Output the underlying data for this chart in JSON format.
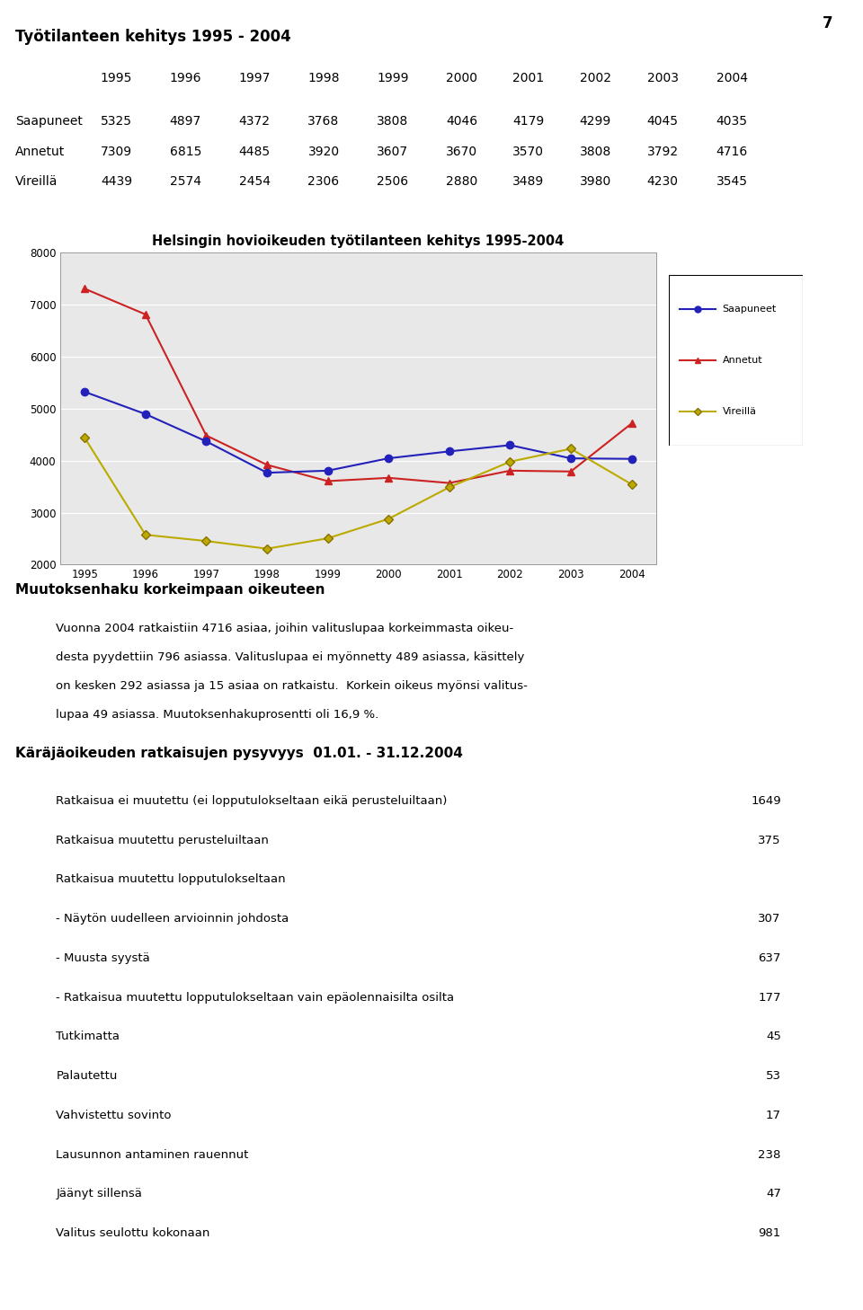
{
  "page_number": "7",
  "main_title": "Työtilanteen kehitys 1995 - 2004",
  "years": [
    1995,
    1996,
    1997,
    1998,
    1999,
    2000,
    2001,
    2002,
    2003,
    2004
  ],
  "saapuneet": [
    5325,
    4897,
    4372,
    3768,
    3808,
    4046,
    4179,
    4299,
    4045,
    4035
  ],
  "annetut": [
    7309,
    6815,
    4485,
    3920,
    3607,
    3670,
    3570,
    3808,
    3792,
    4716
  ],
  "vireilla": [
    4439,
    2574,
    2454,
    2306,
    2506,
    2880,
    3489,
    3980,
    4230,
    3545
  ],
  "chart_title": "Helsingin hovioikeuden työtilanteen kehitys 1995-2004",
  "ylim": [
    2000,
    8000
  ],
  "yticks": [
    2000,
    3000,
    4000,
    5000,
    6000,
    7000,
    8000
  ],
  "saapuneet_color": "#2222bb",
  "annetut_color": "#cc2222",
  "vireilla_color": "#bbaa00",
  "section2_title": "Muutoksenhaku korkeimpaan oikeuteen",
  "section2_lines": [
    "Vuonna 2004 ratkaistiin 4716 asiaa, joihin valituslupaa korkeimmasta oikeu-",
    "desta pyydettiin 796 asiassa. Valituslupaa ei myönnetty 489 asiassa, käsittely",
    "on kesken 292 asiassa ja 15 asiaa on ratkaistu.  Korkein oikeus myönsi valitus-",
    "lupaa 49 asiassa. Muutoksenhakuprosentti oli 16,9 %."
  ],
  "section3_title": "Käräjäoikeuden ratkaisujen pysyvyys  01.01. - 31.12.2004",
  "table_rows": [
    [
      "Ratkaisua ei muutettu (ei lopputulokseltaan eikä perusteluiltaan)",
      "1649"
    ],
    [
      "Ratkaisua muutettu perusteluiltaan",
      "375"
    ],
    [
      "Ratkaisua muutettu lopputulokseltaan",
      ""
    ],
    [
      "- Näytön uudelleen arvioinnin johdosta",
      "307"
    ],
    [
      "- Muusta syystä",
      "637"
    ],
    [
      "- Ratkaisua muutettu lopputulokseltaan vain epäolennaisilta osilta",
      "177"
    ],
    [
      "Tutkimatta",
      "45"
    ],
    [
      "Palautettu",
      "53"
    ],
    [
      "Vahvistettu sovinto",
      "17"
    ],
    [
      "Lausunnon antaminen rauennut",
      "238"
    ],
    [
      "Jäänyt sillensä",
      "47"
    ],
    [
      "Valitus seulottu kokonaan",
      "981"
    ]
  ]
}
